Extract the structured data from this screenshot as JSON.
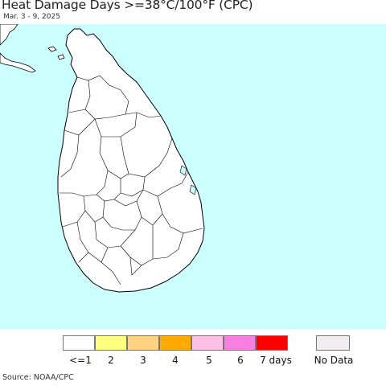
{
  "title": "Heat Damage Days >=38°C/100°F (CPC)",
  "date_range": "Mar. 3 - 9, 2025",
  "source": "Source: NOAA/CPC",
  "colors": {
    "ocean": "#ccffff",
    "land": "#ffffff",
    "borders": "#000000"
  },
  "legend": {
    "items": [
      {
        "label": "<=1",
        "color": "#ffffff"
      },
      {
        "label": "2",
        "color": "#ffff80"
      },
      {
        "label": "3",
        "color": "#ffd27f"
      },
      {
        "label": "4",
        "color": "#ffaa00"
      },
      {
        "label": "5",
        "color": "#ffc0e6"
      },
      {
        "label": "6",
        "color": "#f77fe0"
      },
      {
        "label": "7 days",
        "color": "#ff0000"
      }
    ],
    "no_data": {
      "label": "No Data",
      "color": "#f0ecf0"
    }
  }
}
